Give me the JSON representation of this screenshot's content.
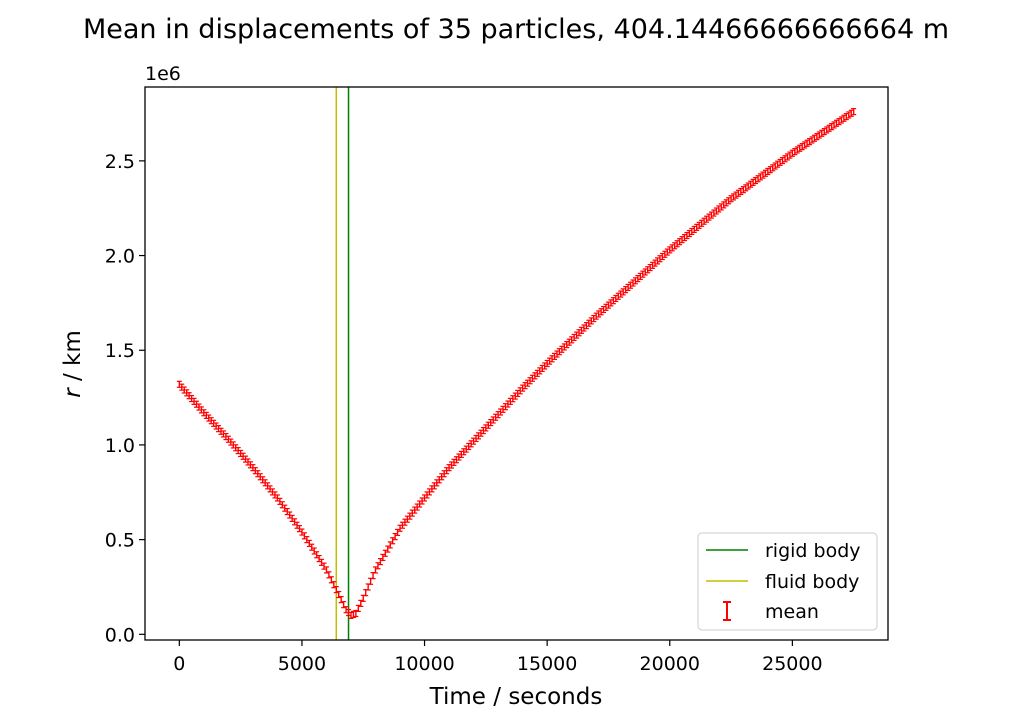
{
  "chart_data": {
    "type": "scatter",
    "title": "Mean in displacements of 35 particles, 404.14466666666664 m",
    "xlabel": "Time / seconds",
    "ylabel_italic": "r",
    "ylabel_rest": " / km",
    "y_offset_text": "1e6",
    "xlim": [
      -1400,
      28900
    ],
    "ylim": [
      -30000,
      2890000
    ],
    "x_ticks": [
      0,
      5000,
      10000,
      15000,
      20000,
      25000
    ],
    "x_tick_labels": [
      "0",
      "5000",
      "10000",
      "15000",
      "20000",
      "25000"
    ],
    "y_ticks": [
      0,
      500000,
      1000000,
      1500000,
      2000000,
      2500000
    ],
    "y_tick_labels": [
      "0.0",
      "0.5",
      "1.0",
      "1.5",
      "2.0",
      "2.5"
    ],
    "grid": false,
    "legend_position": "lower-right",
    "vlines": [
      {
        "name": "rigid body",
        "x": 6900,
        "color": "#008000"
      },
      {
        "name": "fluid body",
        "x": 6400,
        "color": "#bfbf00"
      }
    ],
    "series": [
      {
        "name": "mean",
        "color": "#ff0000",
        "marker": "errorbar",
        "x_start": 0,
        "x_end": 27500,
        "x_step": 100,
        "curve_points": [
          [
            0,
            1320000
          ],
          [
            1000,
            1170000
          ],
          [
            2000,
            1030000
          ],
          [
            3000,
            880000
          ],
          [
            4000,
            720000
          ],
          [
            5000,
            540000
          ],
          [
            6000,
            340000
          ],
          [
            6500,
            210000
          ],
          [
            6800,
            130000
          ],
          [
            7000,
            100000
          ],
          [
            7200,
            110000
          ],
          [
            7500,
            190000
          ],
          [
            8000,
            340000
          ],
          [
            9000,
            560000
          ],
          [
            10000,
            720000
          ],
          [
            11000,
            880000
          ],
          [
            12000,
            1020000
          ],
          [
            13000,
            1160000
          ],
          [
            14000,
            1300000
          ],
          [
            15000,
            1430000
          ],
          [
            17000,
            1680000
          ],
          [
            20000,
            2030000
          ],
          [
            22500,
            2300000
          ],
          [
            25000,
            2540000
          ],
          [
            27500,
            2760000
          ]
        ]
      }
    ]
  }
}
